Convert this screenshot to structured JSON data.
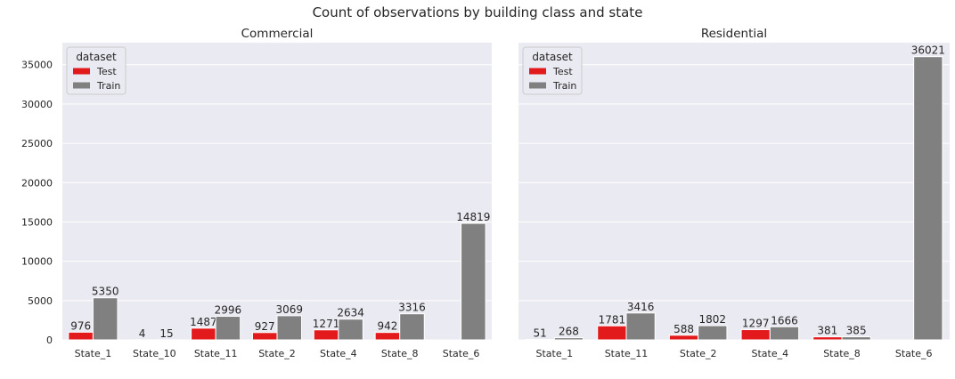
{
  "chart_data": {
    "type": "bar",
    "title": "Count of observations by building class and state",
    "colors": {
      "Test": "#e31a1c",
      "Train": "#808080",
      "background": "#eaeaf2"
    },
    "legend": {
      "title": "dataset",
      "placement": "top-left",
      "entries": [
        "Test",
        "Train"
      ]
    },
    "shared_y": true,
    "ylim": [
      0,
      37800
    ],
    "yticks": [
      0,
      5000,
      10000,
      15000,
      20000,
      25000,
      30000,
      35000
    ],
    "grid": true,
    "panels": [
      {
        "title": "Commercial",
        "categories": [
          "State_1",
          "State_10",
          "State_11",
          "State_2",
          "State_4",
          "State_8",
          "State_6"
        ],
        "series": [
          {
            "name": "Test",
            "values": [
              976,
              4,
              1487,
              927,
              1271,
              942,
              null
            ]
          },
          {
            "name": "Train",
            "values": [
              5350,
              15,
              2996,
              3069,
              2634,
              3316,
              14819
            ]
          }
        ]
      },
      {
        "title": "Residential",
        "categories": [
          "State_1",
          "State_11",
          "State_2",
          "State_4",
          "State_8",
          "State_6"
        ],
        "series": [
          {
            "name": "Test",
            "values": [
              51,
              1781,
              588,
              1297,
              381,
              null
            ]
          },
          {
            "name": "Train",
            "values": [
              268,
              3416,
              1802,
              1666,
              385,
              36021
            ]
          }
        ]
      }
    ]
  }
}
